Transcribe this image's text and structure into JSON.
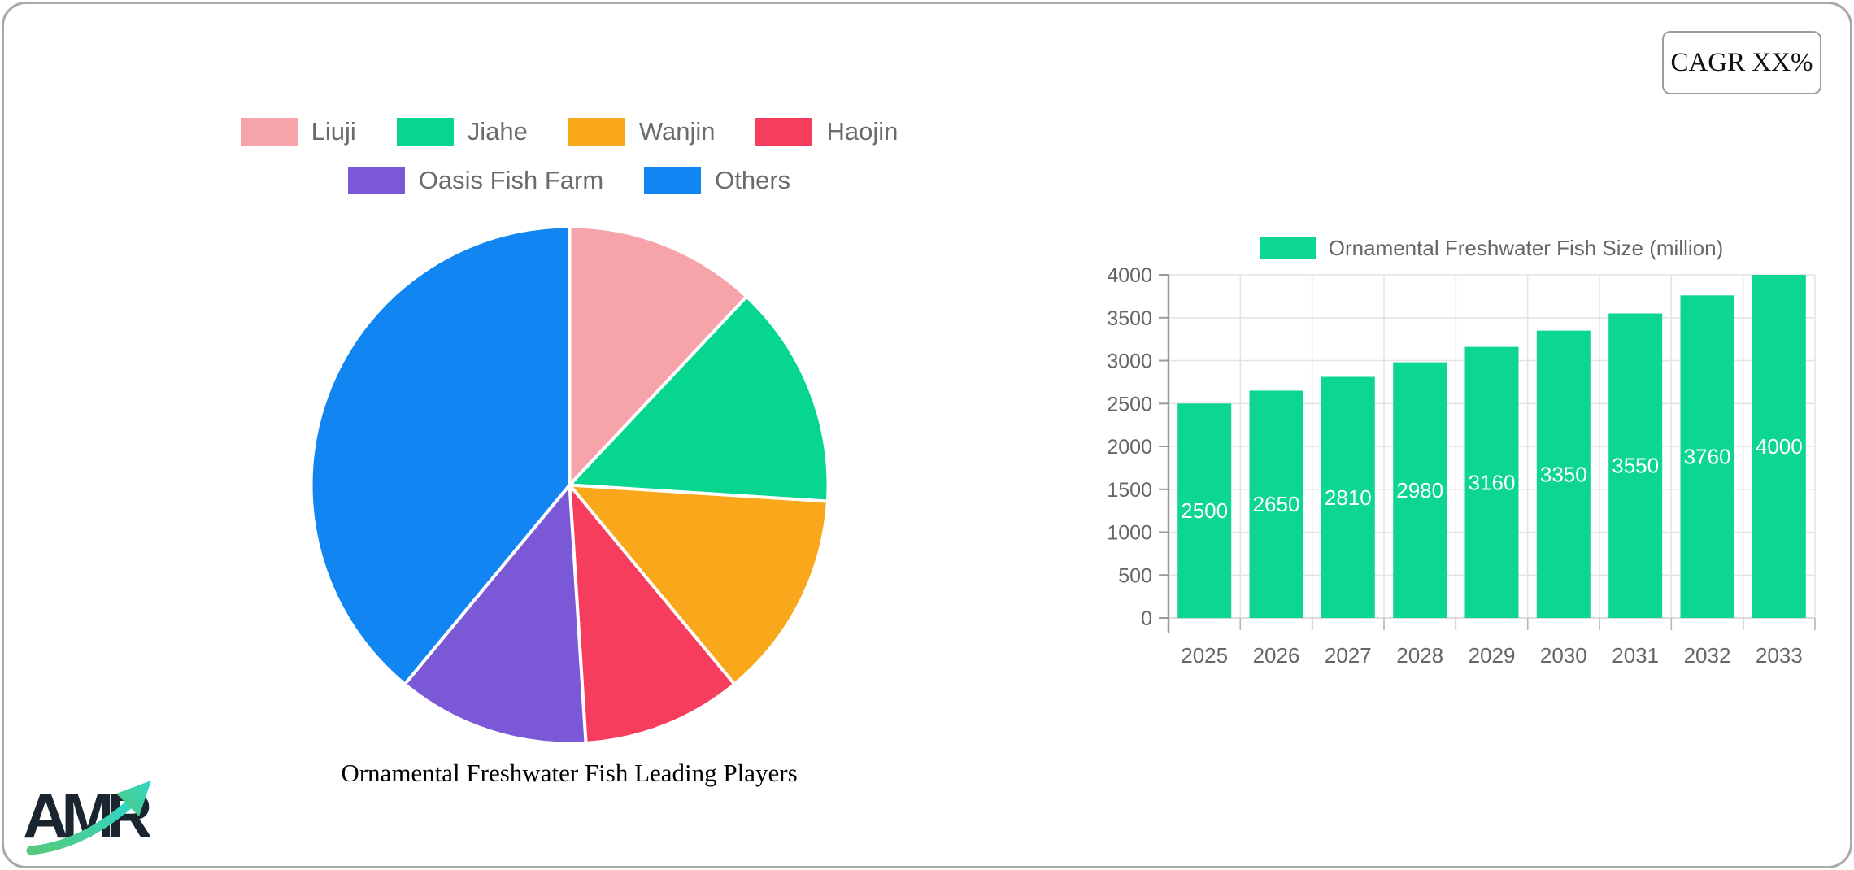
{
  "frame": {
    "cagr_label": "CAGR XX%"
  },
  "logo": {
    "text": "AMR"
  },
  "chart_data": [
    {
      "type": "pie",
      "title": "Ornamental Freshwater Fish Leading Players",
      "labels": [
        "Liuji",
        "Jiahe",
        "Wanjin",
        "Haojin",
        "Oasis Fish Farm",
        "Others"
      ],
      "values": [
        12,
        14,
        13,
        10,
        12,
        39
      ],
      "unit": "% share (estimated from slice angles; no numeric labels shown)",
      "colors": [
        "#f6a4a9",
        "#07d68f",
        "#f9a81b",
        "#f63d5e",
        "#7b58d5",
        "#1186f2"
      ],
      "legend_rows": [
        [
          0,
          1,
          2,
          3
        ],
        [
          4,
          5
        ]
      ],
      "legend_position": "top",
      "start_angle_deg": 0,
      "slice_border_color": "#ffffff"
    },
    {
      "type": "bar",
      "legend_label": "Ornamental Freshwater Fish Size (million)",
      "categories": [
        "2025",
        "2026",
        "2027",
        "2028",
        "2029",
        "2030",
        "2031",
        "2032",
        "2033"
      ],
      "values": [
        2500,
        2650,
        2810,
        2980,
        3160,
        3350,
        3550,
        3760,
        4000
      ],
      "bar_color": "#0cd68f",
      "ylim": [
        0,
        4000
      ],
      "ytick_step": 500,
      "yticks": [
        "0",
        "500",
        "1000",
        "1500",
        "2000",
        "2500",
        "3000",
        "3500",
        "4000"
      ],
      "grid": "horizontal+vertical",
      "legend_position": "top",
      "value_label_color": "#ffffff",
      "axis_text_color": "#666666"
    }
  ]
}
